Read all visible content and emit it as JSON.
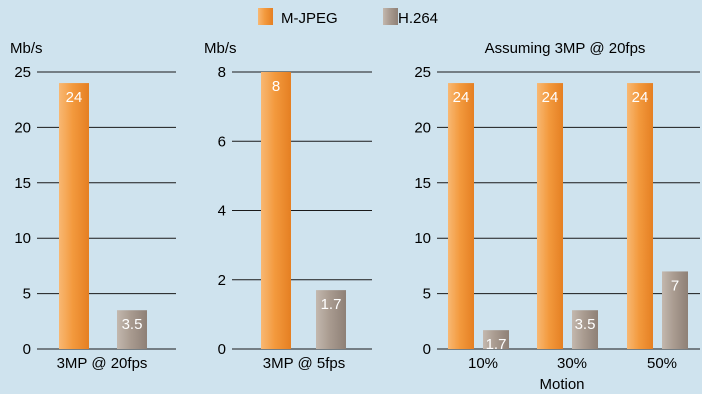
{
  "legend": {
    "items": [
      {
        "label": "M-JPEG",
        "color": "#f5a04a"
      },
      {
        "label": "H.264",
        "color": "#a89b90"
      }
    ]
  },
  "colors": {
    "background": "#cfe3ee",
    "mjpeg_light": "#f8b873",
    "mjpeg_mid": "#f39a3e",
    "mjpeg_dark": "#e57f22",
    "h264_light": "#c3b8ae",
    "h264_mid": "#a99b90",
    "h264_dark": "#8e8076",
    "gridline": "#1a1a1a",
    "data_label": "#ffffff"
  },
  "chart_data": [
    {
      "type": "bar",
      "title": "",
      "ylabel": "Mb/s",
      "xlabel": "",
      "ylim": [
        0,
        25
      ],
      "yticks": [
        0,
        5,
        10,
        15,
        20,
        25
      ],
      "categories": [
        "3MP @ 20fps"
      ],
      "series": [
        {
          "name": "M-JPEG",
          "values": [
            24
          ]
        },
        {
          "name": "H.264",
          "values": [
            3.5
          ]
        }
      ],
      "data_labels": [
        [
          "24"
        ],
        [
          "3.5"
        ]
      ],
      "grid": true
    },
    {
      "type": "bar",
      "title": "",
      "ylabel": "Mb/s",
      "xlabel": "",
      "ylim": [
        0,
        8
      ],
      "yticks": [
        0,
        2,
        4,
        6,
        8
      ],
      "categories": [
        "3MP @ 5fps"
      ],
      "series": [
        {
          "name": "M-JPEG",
          "values": [
            8
          ]
        },
        {
          "name": "H.264",
          "values": [
            1.7
          ]
        }
      ],
      "data_labels": [
        [
          "8"
        ],
        [
          "1.7"
        ]
      ],
      "grid": true
    },
    {
      "type": "bar",
      "title": "Assuming 3MP @ 20fps",
      "ylabel": "",
      "xlabel": "Motion",
      "ylim": [
        0,
        25
      ],
      "yticks": [
        0,
        5,
        10,
        15,
        20,
        25
      ],
      "categories": [
        "10%",
        "30%",
        "50%"
      ],
      "series": [
        {
          "name": "M-JPEG",
          "values": [
            24,
            24,
            24
          ]
        },
        {
          "name": "H.264",
          "values": [
            1.7,
            3.5,
            7
          ]
        }
      ],
      "data_labels": [
        [
          "24",
          "24",
          "24"
        ],
        [
          "1.7",
          "3.5",
          "7"
        ]
      ],
      "grid": true
    }
  ]
}
